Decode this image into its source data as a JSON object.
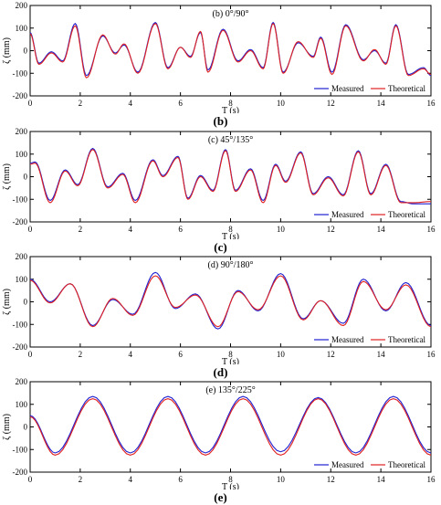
{
  "colors": {
    "measured": "#1f1fd0",
    "theoretical": "#e02020"
  },
  "chart_data": [
    {
      "type": "line",
      "caption": "(b)",
      "title": "(b) 0°/90°",
      "xlabel": "T (s)",
      "ylabel": "ζ (mm)",
      "xlim": [
        0,
        16
      ],
      "ylim": [
        -200,
        200
      ],
      "xticks": [
        0,
        2,
        4,
        6,
        8,
        10,
        12,
        14,
        16
      ],
      "yticks": [
        -200,
        -100,
        0,
        100,
        200
      ],
      "legend_position": "bottom-right",
      "series": [
        {
          "name": "Measured",
          "x": [
            0,
            0.35,
            0.85,
            1.3,
            1.8,
            2.25,
            2.9,
            3.4,
            3.75,
            4.3,
            5.0,
            5.5,
            6.0,
            6.4,
            6.8,
            7.1,
            7.7,
            8.3,
            8.8,
            9.3,
            9.7,
            10.1,
            10.7,
            11.3,
            11.6,
            12.05,
            12.6,
            13.3,
            13.75,
            14.2,
            14.6,
            15.1,
            15.7,
            16
          ],
          "y": [
            80,
            -55,
            -5,
            -45,
            120,
            -110,
            65,
            -10,
            25,
            -95,
            125,
            -75,
            15,
            -25,
            80,
            -85,
            95,
            -45,
            5,
            -75,
            125,
            -95,
            35,
            -25,
            60,
            -95,
            115,
            -40,
            0,
            -55,
            115,
            -105,
            -75,
            -110
          ]
        },
        {
          "name": "Theoretical",
          "x": [
            0,
            0.35,
            0.85,
            1.3,
            1.8,
            2.25,
            2.9,
            3.4,
            3.75,
            4.3,
            5.0,
            5.5,
            6.0,
            6.4,
            6.8,
            7.1,
            7.7,
            8.3,
            8.8,
            9.3,
            9.7,
            10.1,
            10.7,
            11.3,
            11.6,
            12.05,
            12.6,
            13.3,
            13.75,
            14.2,
            14.6,
            15.1,
            15.7,
            16
          ],
          "y": [
            75,
            -60,
            -10,
            -50,
            110,
            -120,
            70,
            -15,
            30,
            -100,
            120,
            -80,
            15,
            -30,
            85,
            -95,
            90,
            -50,
            0,
            -80,
            120,
            -100,
            40,
            -30,
            55,
            -105,
            110,
            -45,
            5,
            -60,
            110,
            -110,
            -80,
            -105
          ]
        }
      ]
    },
    {
      "type": "line",
      "caption": "(c)",
      "title": "(c) 45°/135°",
      "xlabel": "T (s)",
      "ylabel": "ζ (mm)",
      "xlim": [
        0,
        16
      ],
      "ylim": [
        -200,
        200
      ],
      "xticks": [
        0,
        2,
        4,
        6,
        8,
        10,
        12,
        14,
        16
      ],
      "yticks": [
        -200,
        -100,
        0,
        100,
        200
      ],
      "legend_position": "bottom-right",
      "series": [
        {
          "name": "Measured",
          "x": [
            0,
            0.2,
            0.8,
            1.4,
            1.9,
            2.5,
            3.1,
            3.7,
            4.2,
            4.9,
            5.3,
            5.9,
            6.3,
            6.8,
            7.3,
            7.8,
            8.2,
            8.8,
            9.3,
            9.8,
            10.2,
            10.8,
            11.3,
            11.9,
            12.5,
            13.1,
            13.6,
            14.2,
            14.8,
            15.3,
            16
          ],
          "y": [
            60,
            65,
            -105,
            30,
            -35,
            125,
            -45,
            15,
            -105,
            75,
            5,
            90,
            -95,
            5,
            -60,
            120,
            -60,
            35,
            -105,
            55,
            -20,
            110,
            -75,
            0,
            -80,
            115,
            -75,
            55,
            -110,
            -120,
            -120
          ]
        },
        {
          "name": "Theoretical",
          "x": [
            0,
            0.2,
            0.8,
            1.4,
            1.9,
            2.5,
            3.1,
            3.7,
            4.2,
            4.9,
            5.3,
            5.9,
            6.3,
            6.8,
            7.3,
            7.8,
            8.2,
            8.8,
            9.3,
            9.8,
            10.2,
            10.8,
            11.3,
            11.9,
            12.5,
            13.1,
            13.6,
            14.2,
            14.8,
            15.3,
            16
          ],
          "y": [
            55,
            60,
            -115,
            25,
            -40,
            120,
            -50,
            10,
            -115,
            70,
            0,
            85,
            -100,
            0,
            -65,
            115,
            -65,
            30,
            -115,
            50,
            -25,
            105,
            -80,
            -5,
            -85,
            110,
            -80,
            50,
            -115,
            -115,
            -110
          ]
        }
      ]
    },
    {
      "type": "line",
      "caption": "(d)",
      "title": "(d) 90°/180°",
      "xlabel": "T (s)",
      "ylabel": "ζ (mm)",
      "xlim": [
        0,
        16
      ],
      "ylim": [
        -200,
        200
      ],
      "xticks": [
        0,
        2,
        4,
        6,
        8,
        10,
        12,
        14,
        16
      ],
      "yticks": [
        -200,
        -100,
        0,
        100,
        200
      ],
      "legend_position": "bottom-right",
      "series": [
        {
          "name": "Measured",
          "x": [
            0,
            0.8,
            1.6,
            2.5,
            3.3,
            4.1,
            5.0,
            5.8,
            6.6,
            7.5,
            8.3,
            9.1,
            10.0,
            10.9,
            11.6,
            12.5,
            13.3,
            14.2,
            15.0,
            16
          ],
          "y": [
            100,
            0,
            80,
            -105,
            10,
            -55,
            130,
            -30,
            35,
            -120,
            50,
            -40,
            125,
            -75,
            5,
            -95,
            100,
            -40,
            85,
            -105
          ]
        },
        {
          "name": "Theoretical",
          "x": [
            0,
            0.8,
            1.6,
            2.5,
            3.3,
            4.1,
            5.0,
            5.8,
            6.6,
            7.5,
            8.3,
            9.1,
            10.0,
            10.9,
            11.6,
            12.5,
            13.3,
            14.2,
            15.0,
            16
          ],
          "y": [
            95,
            -5,
            80,
            -110,
            15,
            -60,
            115,
            -25,
            30,
            -110,
            45,
            -35,
            115,
            -80,
            5,
            -105,
            90,
            -35,
            75,
            -110
          ]
        }
      ]
    },
    {
      "type": "line",
      "caption": "(e)",
      "title": "(e) 135°/225°",
      "xlabel": "T (s)",
      "ylabel": "ζ (mm)",
      "xlim": [
        0,
        16
      ],
      "ylim": [
        -200,
        200
      ],
      "xticks": [
        0,
        2,
        4,
        6,
        8,
        10,
        12,
        14,
        16
      ],
      "yticks": [
        -200,
        -100,
        0,
        100,
        200
      ],
      "legend_position": "bottom-right",
      "series": [
        {
          "name": "Measured",
          "x": [
            0,
            1.0,
            2.5,
            4.0,
            5.5,
            7.0,
            8.5,
            10.0,
            11.5,
            13.0,
            14.5,
            16
          ],
          "y": [
            50,
            -115,
            135,
            -115,
            135,
            -115,
            135,
            -110,
            130,
            -115,
            135,
            -115
          ]
        },
        {
          "name": "Theoretical",
          "x": [
            0,
            1.0,
            2.5,
            4.0,
            5.5,
            7.0,
            8.5,
            10.0,
            11.5,
            13.0,
            14.5,
            16
          ],
          "y": [
            45,
            -125,
            125,
            -125,
            125,
            -125,
            125,
            -125,
            125,
            -125,
            125,
            -125
          ]
        }
      ]
    }
  ]
}
